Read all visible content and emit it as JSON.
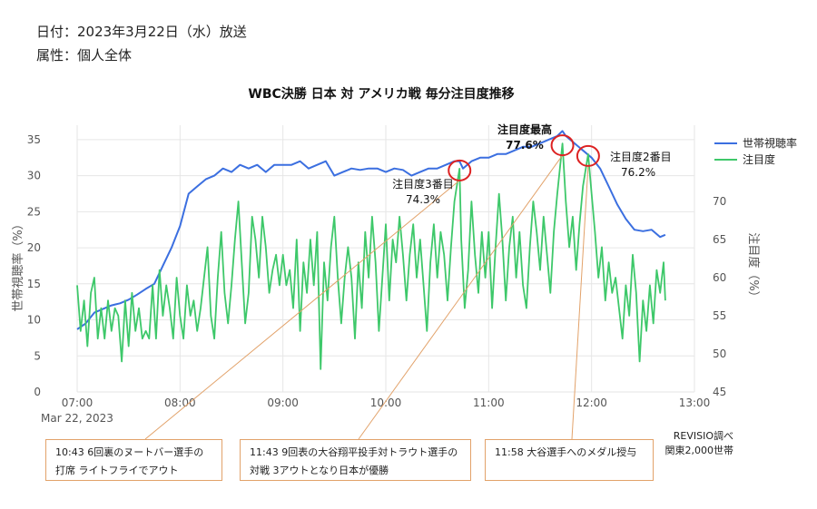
{
  "meta": {
    "date": "日付：2023年3月22日（水）放送",
    "attribute": "属性：個人全体"
  },
  "source": {
    "line1": "REVISIO調べ",
    "line2": "関東2,000世帯"
  },
  "callouts": [
    "10:43  6回裏のヌートバー選手の打席 ライトフライでアウト",
    "11:43  9回表の大谷翔平投手対トラウト選手の対戦 3アウトとなり日本が優勝",
    "11:58  大谷選手へのメダル授与"
  ],
  "colors": {
    "rating": "#3b6fe0",
    "attention": "#3ec86a",
    "highlight": "#dd2222",
    "leader": "#e2a26a",
    "grid": "#e6e6e6"
  },
  "chart_data": {
    "type": "line",
    "title": "WBC決勝  日本 対 アメリカ戦  毎分注目度推移",
    "xlabel": "",
    "ylabel_left": "世帯視聴率（%）",
    "ylabel_right": "注目度（%）",
    "x_ticks": [
      "07:00",
      "08:00",
      "09:00",
      "10:00",
      "11:00",
      "12:00",
      "13:00"
    ],
    "x_date_label": "Mar 22, 2023",
    "x_range": [
      "07:00",
      "13:00"
    ],
    "y_left_range": [
      0,
      37
    ],
    "y_left_ticks": [
      0,
      5,
      10,
      15,
      20,
      25,
      30,
      35
    ],
    "y_right_range": [
      45,
      80
    ],
    "y_right_ticks": [
      45,
      50,
      55,
      60,
      65,
      70
    ],
    "legend_position": "top-right",
    "series": [
      {
        "name": "世帯視聴率",
        "axis": "left",
        "points": [
          [
            "07:00",
            8.7
          ],
          [
            "07:05",
            9.5
          ],
          [
            "07:10",
            11.0
          ],
          [
            "07:15",
            11.5
          ],
          [
            "07:20",
            12.0
          ],
          [
            "07:25",
            12.3
          ],
          [
            "07:30",
            12.8
          ],
          [
            "07:35",
            13.5
          ],
          [
            "07:40",
            14.3
          ],
          [
            "07:45",
            15.0
          ],
          [
            "07:50",
            17.5
          ],
          [
            "07:55",
            20.0
          ],
          [
            "08:00",
            23.0
          ],
          [
            "08:05",
            27.5
          ],
          [
            "08:10",
            28.5
          ],
          [
            "08:15",
            29.5
          ],
          [
            "08:20",
            30.0
          ],
          [
            "08:25",
            31.0
          ],
          [
            "08:30",
            30.5
          ],
          [
            "08:35",
            31.5
          ],
          [
            "08:40",
            31.0
          ],
          [
            "08:45",
            31.5
          ],
          [
            "08:50",
            30.5
          ],
          [
            "08:55",
            31.5
          ],
          [
            "09:00",
            31.5
          ],
          [
            "09:05",
            31.5
          ],
          [
            "09:10",
            32.0
          ],
          [
            "09:15",
            31.0
          ],
          [
            "09:20",
            31.5
          ],
          [
            "09:25",
            32.0
          ],
          [
            "09:30",
            30.0
          ],
          [
            "09:35",
            30.5
          ],
          [
            "09:40",
            31.0
          ],
          [
            "09:45",
            30.8
          ],
          [
            "09:50",
            31.0
          ],
          [
            "09:55",
            31.0
          ],
          [
            "10:00",
            30.5
          ],
          [
            "10:05",
            31.0
          ],
          [
            "10:10",
            30.8
          ],
          [
            "10:15",
            30.0
          ],
          [
            "10:20",
            30.5
          ],
          [
            "10:25",
            31.0
          ],
          [
            "10:30",
            31.0
          ],
          [
            "10:35",
            31.5
          ],
          [
            "10:40",
            32.0
          ],
          [
            "10:43",
            32.0
          ],
          [
            "10:45",
            31.0
          ],
          [
            "10:50",
            32.0
          ],
          [
            "10:55",
            32.5
          ],
          [
            "11:00",
            32.5
          ],
          [
            "11:05",
            33.0
          ],
          [
            "11:10",
            33.0
          ],
          [
            "11:15",
            33.5
          ],
          [
            "11:20",
            34.0
          ],
          [
            "11:25",
            34.0
          ],
          [
            "11:30",
            34.5
          ],
          [
            "11:35",
            35.0
          ],
          [
            "11:40",
            35.5
          ],
          [
            "11:43",
            36.2
          ],
          [
            "11:45",
            35.5
          ],
          [
            "11:50",
            34.5
          ],
          [
            "11:55",
            33.5
          ],
          [
            "12:00",
            32.5
          ],
          [
            "12:05",
            31.0
          ],
          [
            "12:10",
            28.5
          ],
          [
            "12:15",
            26.0
          ],
          [
            "12:20",
            24.0
          ],
          [
            "12:25",
            22.5
          ],
          [
            "12:30",
            22.3
          ],
          [
            "12:35",
            22.5
          ],
          [
            "12:40",
            21.5
          ],
          [
            "12:43",
            21.8
          ]
        ]
      },
      {
        "name": "注目度",
        "axis": "right",
        "points": [
          [
            "07:00",
            59
          ],
          [
            "07:02",
            53
          ],
          [
            "07:04",
            57
          ],
          [
            "07:06",
            51
          ],
          [
            "07:08",
            58
          ],
          [
            "07:10",
            60
          ],
          [
            "07:12",
            52
          ],
          [
            "07:14",
            56
          ],
          [
            "07:16",
            52
          ],
          [
            "07:18",
            57
          ],
          [
            "07:20",
            53
          ],
          [
            "07:22",
            56
          ],
          [
            "07:24",
            55
          ],
          [
            "07:26",
            49
          ],
          [
            "07:28",
            57
          ],
          [
            "07:30",
            51
          ],
          [
            "07:32",
            58
          ],
          [
            "07:34",
            53
          ],
          [
            "07:36",
            56
          ],
          [
            "07:38",
            52
          ],
          [
            "07:40",
            53
          ],
          [
            "07:42",
            52
          ],
          [
            "07:44",
            59
          ],
          [
            "07:46",
            52
          ],
          [
            "07:48",
            61
          ],
          [
            "07:50",
            55
          ],
          [
            "07:52",
            59
          ],
          [
            "07:54",
            56
          ],
          [
            "07:56",
            52
          ],
          [
            "07:58",
            60
          ],
          [
            "08:00",
            55
          ],
          [
            "08:02",
            52
          ],
          [
            "08:04",
            59
          ],
          [
            "08:06",
            55
          ],
          [
            "08:08",
            57
          ],
          [
            "08:10",
            53
          ],
          [
            "08:12",
            56
          ],
          [
            "08:14",
            60
          ],
          [
            "08:16",
            64
          ],
          [
            "08:18",
            55
          ],
          [
            "08:20",
            52
          ],
          [
            "08:22",
            60
          ],
          [
            "08:24",
            66
          ],
          [
            "08:26",
            58
          ],
          [
            "08:28",
            54
          ],
          [
            "08:30",
            59
          ],
          [
            "08:32",
            65
          ],
          [
            "08:34",
            70
          ],
          [
            "08:36",
            62
          ],
          [
            "08:38",
            54
          ],
          [
            "08:40",
            58
          ],
          [
            "08:42",
            68
          ],
          [
            "08:44",
            65
          ],
          [
            "08:46",
            60
          ],
          [
            "08:48",
            68
          ],
          [
            "08:50",
            64
          ],
          [
            "08:52",
            58
          ],
          [
            "08:54",
            61
          ],
          [
            "08:56",
            63
          ],
          [
            "08:58",
            59
          ],
          [
            "09:00",
            63
          ],
          [
            "09:02",
            59
          ],
          [
            "09:04",
            61
          ],
          [
            "09:06",
            56
          ],
          [
            "09:08",
            65
          ],
          [
            "09:10",
            53
          ],
          [
            "09:12",
            62
          ],
          [
            "09:14",
            58
          ],
          [
            "09:16",
            65
          ],
          [
            "09:18",
            59
          ],
          [
            "09:20",
            66
          ],
          [
            "09:22",
            48
          ],
          [
            "09:24",
            62
          ],
          [
            "09:26",
            57
          ],
          [
            "09:28",
            64
          ],
          [
            "09:30",
            68
          ],
          [
            "09:32",
            60
          ],
          [
            "09:34",
            54
          ],
          [
            "09:36",
            60
          ],
          [
            "09:38",
            64
          ],
          [
            "09:40",
            60
          ],
          [
            "09:42",
            52
          ],
          [
            "09:44",
            62
          ],
          [
            "09:46",
            56
          ],
          [
            "09:48",
            66
          ],
          [
            "09:50",
            60
          ],
          [
            "09:52",
            68
          ],
          [
            "09:54",
            62
          ],
          [
            "09:56",
            53
          ],
          [
            "09:58",
            60
          ],
          [
            "10:00",
            67
          ],
          [
            "10:02",
            57
          ],
          [
            "10:04",
            65
          ],
          [
            "10:06",
            62
          ],
          [
            "10:08",
            68
          ],
          [
            "10:10",
            63
          ],
          [
            "10:12",
            57
          ],
          [
            "10:14",
            63
          ],
          [
            "10:16",
            67
          ],
          [
            "10:18",
            60
          ],
          [
            "10:20",
            65
          ],
          [
            "10:22",
            59
          ],
          [
            "10:24",
            53
          ],
          [
            "10:26",
            62
          ],
          [
            "10:28",
            67
          ],
          [
            "10:30",
            60
          ],
          [
            "10:32",
            66
          ],
          [
            "10:34",
            63
          ],
          [
            "10:36",
            57
          ],
          [
            "10:38",
            64
          ],
          [
            "10:40",
            70
          ],
          [
            "10:43",
            74.3
          ],
          [
            "10:44",
            65
          ],
          [
            "10:46",
            56
          ],
          [
            "10:48",
            61
          ],
          [
            "10:50",
            70
          ],
          [
            "10:52",
            63
          ],
          [
            "10:54",
            58
          ],
          [
            "10:56",
            66
          ],
          [
            "10:58",
            60
          ],
          [
            "11:00",
            66
          ],
          [
            "11:02",
            56
          ],
          [
            "11:04",
            64
          ],
          [
            "11:06",
            71
          ],
          [
            "11:08",
            65
          ],
          [
            "11:10",
            57
          ],
          [
            "11:12",
            64
          ],
          [
            "11:14",
            68
          ],
          [
            "11:16",
            60
          ],
          [
            "11:18",
            66
          ],
          [
            "11:20",
            59
          ],
          [
            "11:22",
            56
          ],
          [
            "11:24",
            64
          ],
          [
            "11:26",
            70
          ],
          [
            "11:28",
            66
          ],
          [
            "11:30",
            61
          ],
          [
            "11:32",
            68
          ],
          [
            "11:34",
            63
          ],
          [
            "11:36",
            58
          ],
          [
            "11:38",
            66
          ],
          [
            "11:40",
            71
          ],
          [
            "11:43",
            77.6
          ],
          [
            "11:45",
            70
          ],
          [
            "11:47",
            64
          ],
          [
            "11:49",
            68
          ],
          [
            "11:51",
            61
          ],
          [
            "11:53",
            67
          ],
          [
            "11:55",
            72
          ],
          [
            "11:58",
            76.2
          ],
          [
            "12:00",
            71
          ],
          [
            "12:02",
            66
          ],
          [
            "12:04",
            60
          ],
          [
            "12:06",
            64
          ],
          [
            "12:08",
            57
          ],
          [
            "12:10",
            62
          ],
          [
            "12:12",
            58
          ],
          [
            "12:14",
            60
          ],
          [
            "12:16",
            56
          ],
          [
            "12:18",
            52
          ],
          [
            "12:20",
            59
          ],
          [
            "12:22",
            55
          ],
          [
            "12:24",
            63
          ],
          [
            "12:26",
            58
          ],
          [
            "12:28",
            49
          ],
          [
            "12:30",
            57
          ],
          [
            "12:32",
            53
          ],
          [
            "12:34",
            59
          ],
          [
            "12:36",
            54
          ],
          [
            "12:38",
            61
          ],
          [
            "12:40",
            58
          ],
          [
            "12:42",
            62
          ],
          [
            "12:43",
            57
          ]
        ]
      }
    ],
    "annotations": [
      {
        "label": "注目度3番目",
        "value": "74.3%",
        "x": "10:43",
        "y": 74.3
      },
      {
        "label": "注目度最高",
        "value": "77.6%",
        "x": "11:43",
        "y": 77.6
      },
      {
        "label": "注目度2番目",
        "value": "76.2%",
        "x": "11:58",
        "y": 76.2
      }
    ]
  }
}
